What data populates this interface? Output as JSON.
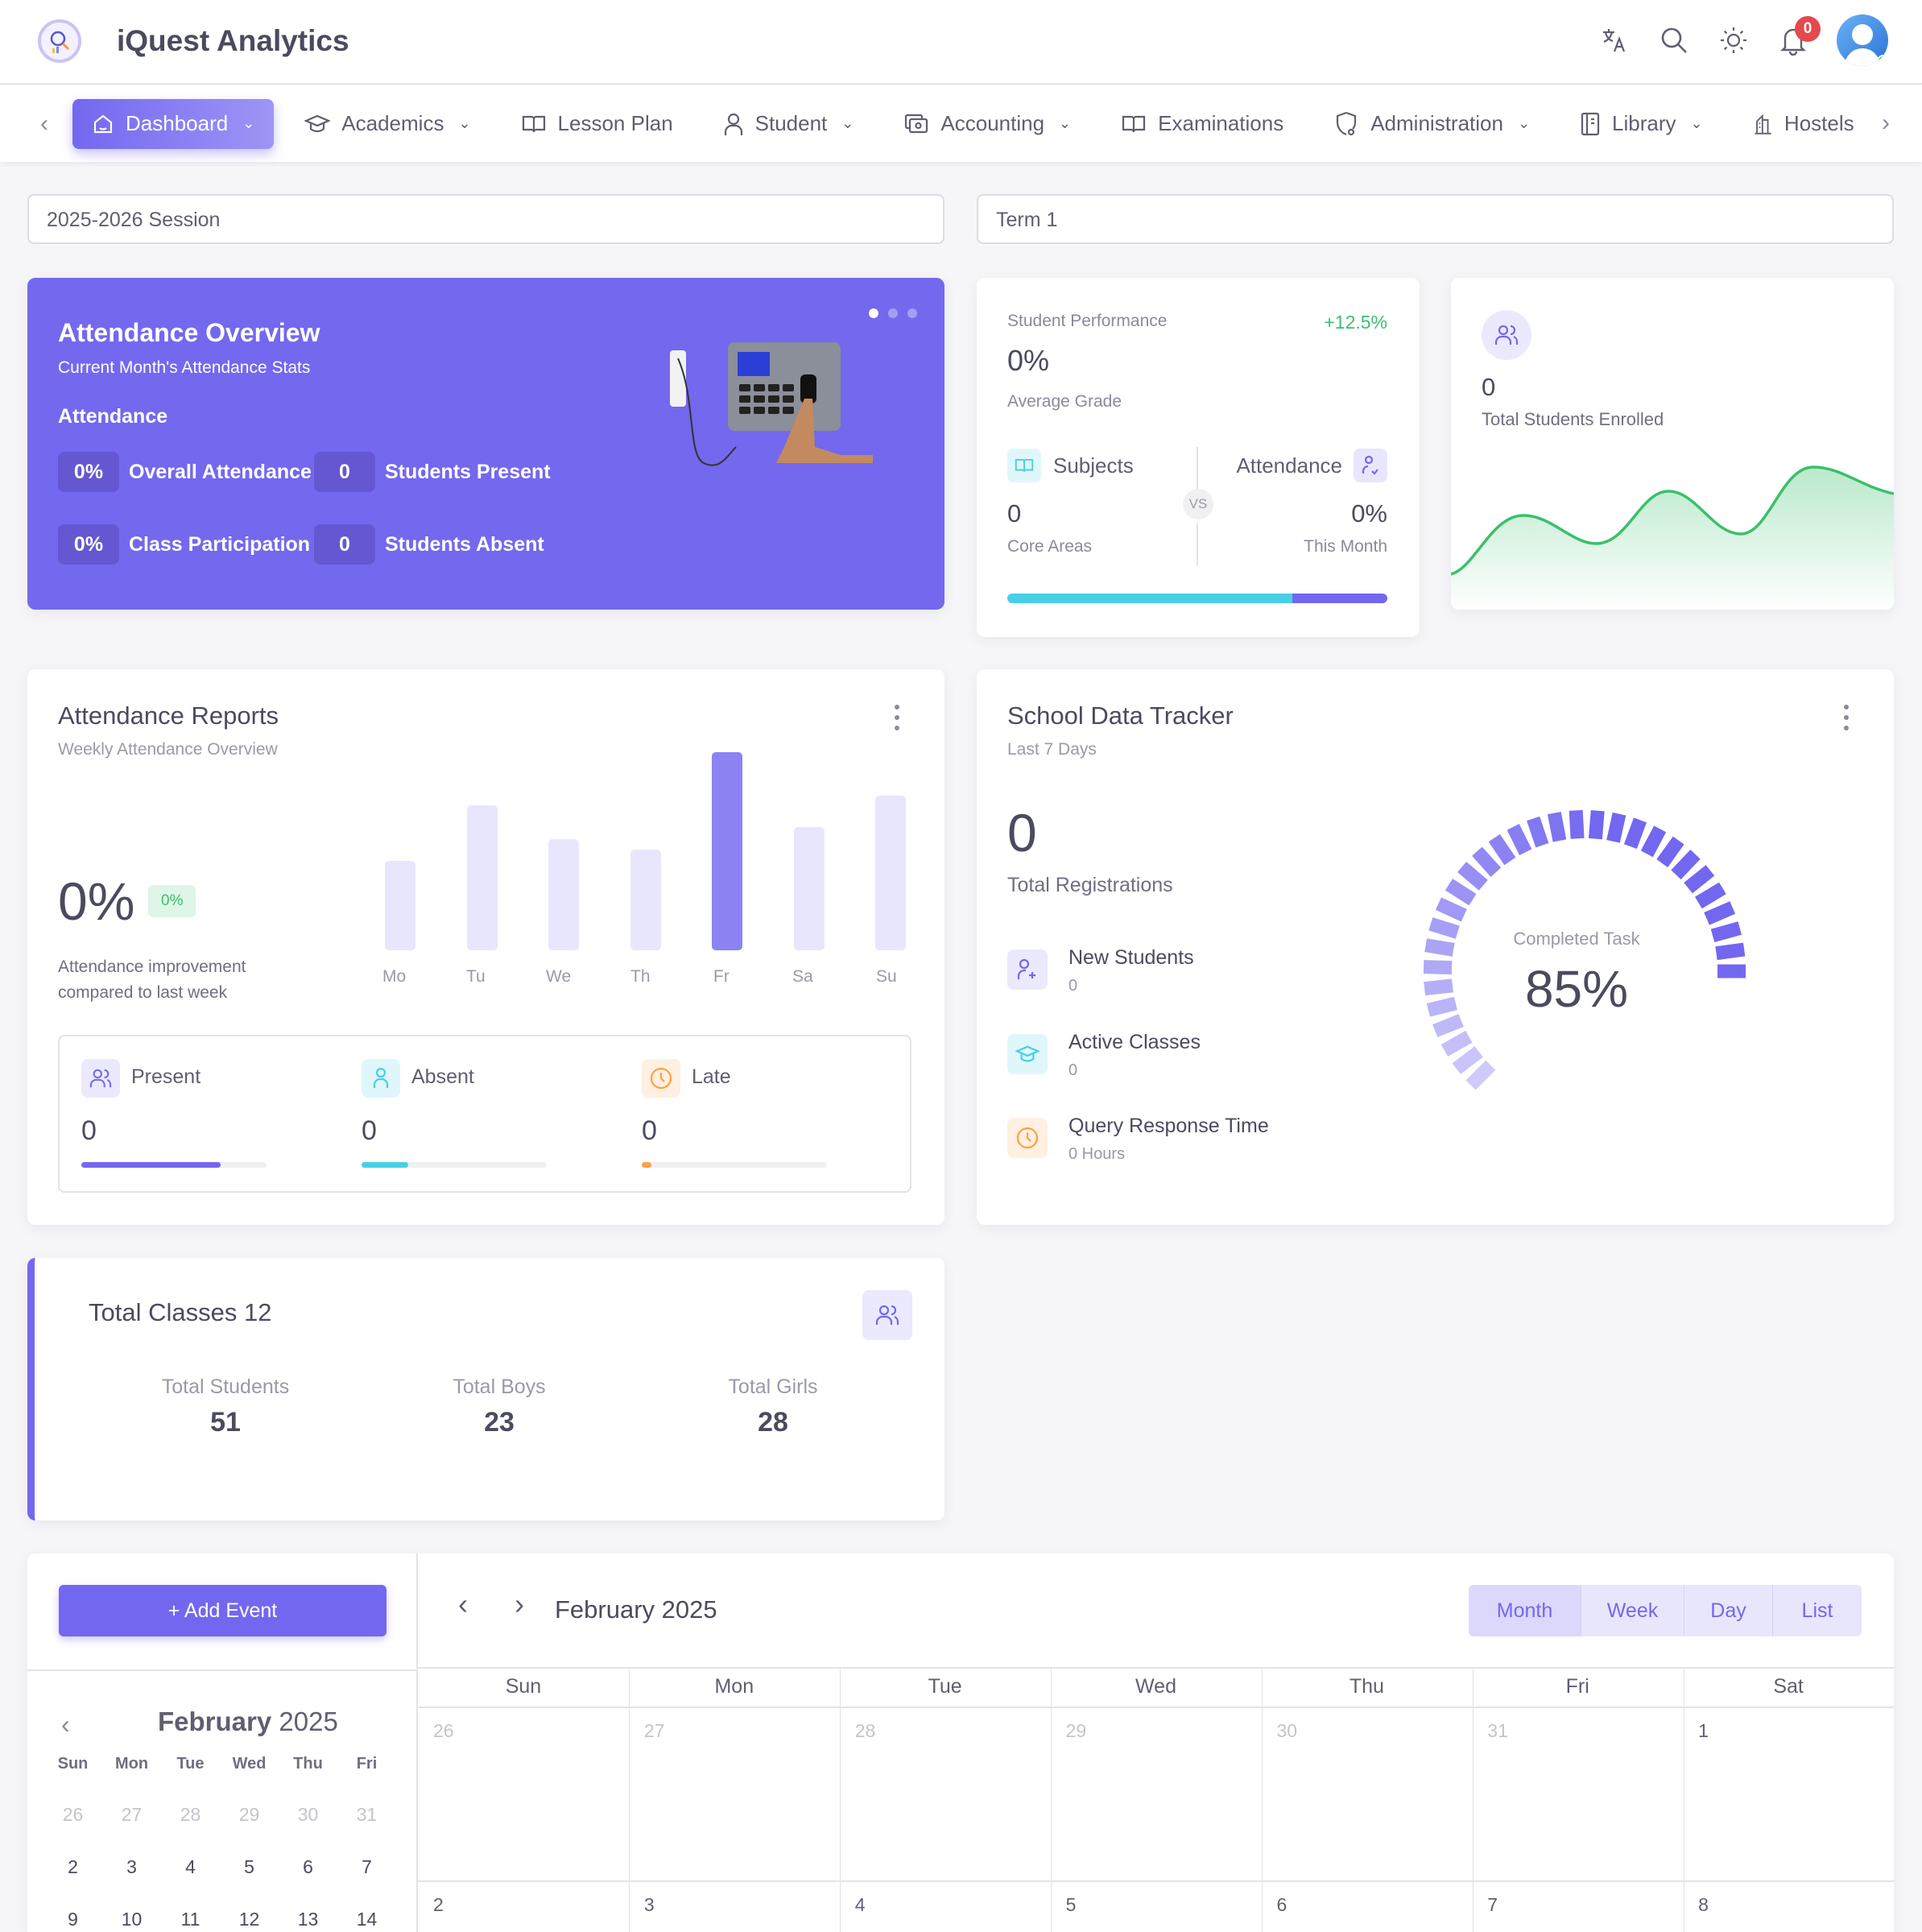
{
  "header": {
    "app_title": "iQuest Analytics",
    "notification_count": "0",
    "icons": [
      "translate-icon",
      "search-icon",
      "sun-icon",
      "bell-icon",
      "avatar"
    ]
  },
  "nav": {
    "items": [
      {
        "label": "Dashboard",
        "icon": "home-icon",
        "dropdown": true,
        "active": true
      },
      {
        "label": "Academics",
        "icon": "graduation-cap-icon",
        "dropdown": true
      },
      {
        "label": "Lesson Plan",
        "icon": "book-open-icon",
        "dropdown": false
      },
      {
        "label": "Student",
        "icon": "user-icon",
        "dropdown": true
      },
      {
        "label": "Accounting",
        "icon": "cash-icon",
        "dropdown": true
      },
      {
        "label": "Examinations",
        "icon": "book-open-icon",
        "dropdown": false
      },
      {
        "label": "Administration",
        "icon": "shield-cog-icon",
        "dropdown": true
      },
      {
        "label": "Library",
        "icon": "notebook-icon",
        "dropdown": true
      },
      {
        "label": "Hostels",
        "icon": "building-icon",
        "dropdown": false
      }
    ]
  },
  "filters": {
    "session": "2025-2026 Session",
    "term": "Term 1"
  },
  "attendance_overview": {
    "title": "Attendance Overview",
    "subtitle": "Current Month's Attendance Stats",
    "section": "Attendance",
    "stats": [
      {
        "value": "0%",
        "label": "Overall Attendance"
      },
      {
        "value": "0",
        "label": "Students Present"
      },
      {
        "value": "0%",
        "label": "Class Participation"
      },
      {
        "value": "0",
        "label": "Students Absent"
      }
    ]
  },
  "student_performance": {
    "title": "Student Performance",
    "change": "+12.5%",
    "value": "0%",
    "value_label": "Average Grade",
    "left": {
      "label": "Subjects",
      "value": "0",
      "sub": "Core Areas"
    },
    "vs": "VS",
    "right": {
      "label": "Attendance",
      "value": "0%",
      "sub": "This Month"
    },
    "colors": {
      "cyan": "#48cfe5",
      "purple": "#7367f0",
      "green": "#3ac06b"
    }
  },
  "enrolled": {
    "value": "0",
    "label": "Total Students Enrolled"
  },
  "attendance_reports": {
    "title": "Attendance Reports",
    "subtitle": "Weekly Attendance Overview",
    "value": "0%",
    "badge": "0%",
    "note_line1": "Attendance improvement",
    "note_line2": "compared to last week",
    "summary": [
      {
        "label": "Present",
        "value": "0",
        "icon": "users-icon",
        "color": "#7367f0",
        "progress": 75
      },
      {
        "label": "Absent",
        "value": "0",
        "icon": "user-icon",
        "color": "#48cfe5",
        "progress": 25
      },
      {
        "label": "Late",
        "value": "0",
        "icon": "clock-icon",
        "color": "#ff9f43",
        "progress": 5
      }
    ]
  },
  "school_tracker": {
    "title": "School Data Tracker",
    "subtitle": "Last 7 Days",
    "value": "0",
    "value_label": "Total Registrations",
    "items": [
      {
        "title": "New Students",
        "value": "0",
        "icon": "user-plus-icon"
      },
      {
        "title": "Active Classes",
        "value": "0",
        "icon": "graduation-cap-icon"
      },
      {
        "title": "Query Response Time",
        "value": "0 Hours",
        "icon": "clock-icon"
      }
    ],
    "gauge_label": "Completed Task",
    "gauge_value": "85%"
  },
  "total_classes": {
    "title": "Total Classes 12",
    "stats": [
      {
        "label": "Total Students",
        "value": "51"
      },
      {
        "label": "Total Boys",
        "value": "23"
      },
      {
        "label": "Total Girls",
        "value": "28"
      }
    ]
  },
  "calendar": {
    "add_event": "+ Add Event",
    "title": "February 2025",
    "views": [
      "Month",
      "Week",
      "Day",
      "List"
    ],
    "active_view": "Month",
    "weekdays": [
      "Sun",
      "Mon",
      "Tue",
      "Wed",
      "Thu",
      "Fri",
      "Sat"
    ],
    "week1": [
      "26",
      "27",
      "28",
      "29",
      "30",
      "31",
      "1"
    ],
    "week2": [
      "2",
      "3",
      "4",
      "5",
      "6",
      "7",
      "8"
    ],
    "mini": {
      "month": "February",
      "year": "2025",
      "weekdays": [
        "Sun",
        "Mon",
        "Tue",
        "Wed",
        "Thu",
        "Fri"
      ],
      "rows": [
        [
          "26",
          "27",
          "28",
          "29",
          "30",
          "31"
        ],
        [
          "2",
          "3",
          "4",
          "5",
          "6",
          "7"
        ],
        [
          "9",
          "10",
          "11",
          "12",
          "13",
          "14"
        ]
      ]
    }
  },
  "chart_data": [
    {
      "type": "bar",
      "title": "Weekly Attendance Overview",
      "categories": [
        "Mo",
        "Tu",
        "We",
        "Th",
        "Fr",
        "Sa",
        "Su"
      ],
      "values": [
        45,
        73,
        56,
        51,
        100,
        62,
        78
      ],
      "highlight": "Fr",
      "ylabel": "",
      "xlabel": "",
      "grid": false
    },
    {
      "type": "area",
      "title": "Total Students Enrolled",
      "x": [
        0,
        1,
        2,
        3,
        4,
        5,
        6
      ],
      "values": [
        10,
        48,
        35,
        68,
        42,
        80,
        68
      ],
      "color": "#3ac06b",
      "grid": false
    },
    {
      "type": "gauge",
      "title": "Completed Task",
      "value": 85,
      "max": 100
    }
  ]
}
